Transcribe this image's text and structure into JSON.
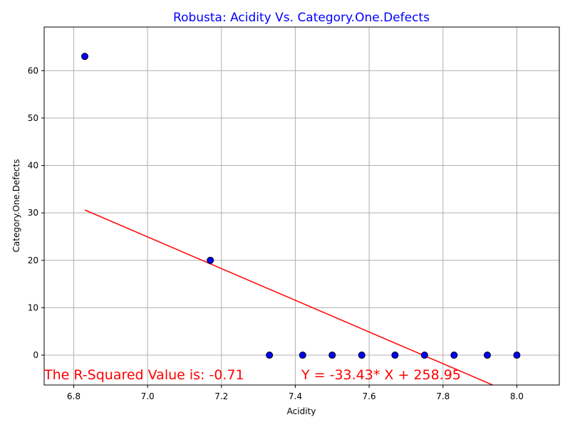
{
  "chart_data": {
    "type": "scatter",
    "title": "Robusta: Acidity Vs. Category.One.Defects",
    "xlabel": "Acidity",
    "ylabel": "Category.One.Defects",
    "xlim": [
      6.72,
      8.115
    ],
    "ylim": [
      -6.3,
      69.2
    ],
    "xticks": [
      6.8,
      7.0,
      7.2,
      7.4,
      7.6,
      7.8,
      8.0
    ],
    "yticks": [
      0,
      10,
      20,
      30,
      40,
      50,
      60
    ],
    "x_tick_labels": [
      "6.8",
      "7.0",
      "7.2",
      "7.4",
      "7.6",
      "7.8",
      "8.0"
    ],
    "y_tick_labels": [
      "0",
      "10",
      "20",
      "30",
      "40",
      "50",
      "60"
    ],
    "grid": true,
    "points": [
      {
        "x": 6.83,
        "y": 63
      },
      {
        "x": 7.17,
        "y": 20
      },
      {
        "x": 7.33,
        "y": 0
      },
      {
        "x": 7.42,
        "y": 0
      },
      {
        "x": 7.5,
        "y": 0
      },
      {
        "x": 7.58,
        "y": 0
      },
      {
        "x": 7.67,
        "y": 0
      },
      {
        "x": 7.75,
        "y": 0
      },
      {
        "x": 7.83,
        "y": 0
      },
      {
        "x": 7.92,
        "y": 0
      },
      {
        "x": 8.0,
        "y": 0
      }
    ],
    "regression": {
      "slope": -33.43,
      "intercept": 258.95,
      "x_start": 6.83,
      "x_end": 8.0
    },
    "annotations": {
      "r_squared": "The R-Squared Value is: -0.71",
      "equation": "Y = -33.43* X + 258.95"
    },
    "colors": {
      "title": "#0000ff",
      "point_fill": "#0000ff",
      "point_edge": "#000000",
      "regression_line": "#ff0000",
      "annotation": "#ff0000",
      "grid": "#b0b0b0"
    }
  }
}
